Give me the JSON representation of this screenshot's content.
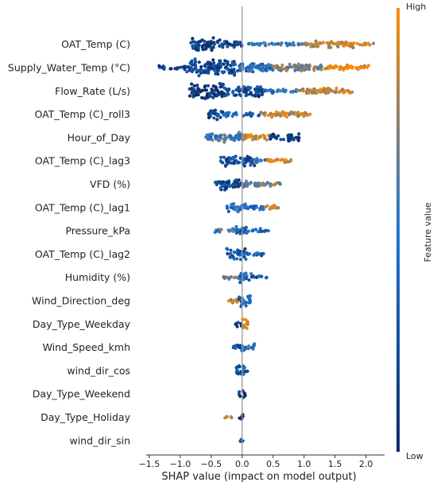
{
  "chart_data": {
    "type": "scatter",
    "subtype": "shap-beeswarm",
    "title": "",
    "xlabel": "SHAP value (impact on model output)",
    "ylabel": "",
    "xlim": [
      -1.55,
      2.3
    ],
    "xticks": [
      -1.5,
      -1.0,
      -0.5,
      0.0,
      0.5,
      1.0,
      1.5,
      2.0
    ],
    "xtick_labels": [
      "−1.5",
      "−1.0",
      "−0.5",
      "0.0",
      "0.5",
      "1.0",
      "1.5",
      "2.0"
    ],
    "grid": false,
    "colorbar": {
      "label": "Feature value",
      "high_label": "High",
      "low_label": "Low",
      "low_color": "#0b2a66",
      "mid_color": "#1f77d4",
      "high_color": "#ff8a00"
    },
    "zero_line_color": "#999999",
    "features": [
      {
        "name": "OAT_Temp (C)",
        "clusters": [
          [
            -0.85,
            -0.35,
            0.9,
            6,
            0.12
          ],
          [
            -0.35,
            0.0,
            0.6,
            3,
            0.2
          ],
          [
            0.1,
            1.0,
            0.3,
            1.5,
            0.55
          ],
          [
            1.0,
            1.8,
            0.55,
            3,
            0.85
          ],
          [
            1.8,
            2.15,
            0.2,
            1,
            0.95
          ]
        ]
      },
      {
        "name": "Supply_Water_Temp (°C)",
        "clusters": [
          [
            -1.35,
            -0.9,
            0.3,
            2,
            0.15
          ],
          [
            -0.9,
            -0.1,
            1.0,
            7,
            0.2
          ],
          [
            -0.1,
            0.5,
            0.8,
            4,
            0.45
          ],
          [
            0.5,
            1.3,
            0.7,
            3,
            0.7
          ],
          [
            1.3,
            2.05,
            0.5,
            2,
            0.95
          ]
        ]
      },
      {
        "name": "Flow_Rate (L/s)",
        "clusters": [
          [
            -0.85,
            -0.3,
            1.0,
            7,
            0.05
          ],
          [
            -0.3,
            0.35,
            0.9,
            5,
            0.2
          ],
          [
            0.35,
            0.9,
            0.4,
            2,
            0.5
          ],
          [
            0.9,
            1.8,
            0.5,
            2.5,
            0.88
          ]
        ]
      },
      {
        "name": "OAT_Temp (C)_roll3",
        "clusters": [
          [
            -0.55,
            -0.3,
            0.7,
            5,
            0.2
          ],
          [
            -0.3,
            0.3,
            0.3,
            2,
            0.35
          ],
          [
            0.3,
            1.1,
            0.45,
            2.5,
            0.85
          ]
        ]
      },
      {
        "name": "Hour_of_Day",
        "clusters": [
          [
            -0.6,
            0.0,
            0.7,
            4.5,
            0.55
          ],
          [
            0.0,
            0.45,
            0.45,
            3,
            0.9
          ],
          [
            0.45,
            0.95,
            0.5,
            3,
            0.1
          ]
        ]
      },
      {
        "name": "OAT_Temp (C)_lag3",
        "clusters": [
          [
            -0.35,
            0.2,
            0.8,
            5,
            0.25
          ],
          [
            0.2,
            0.4,
            0.5,
            2.5,
            0.6
          ],
          [
            0.4,
            0.8,
            0.4,
            2,
            0.9
          ]
        ]
      },
      {
        "name": "VFD (%)",
        "clusters": [
          [
            -0.45,
            0.0,
            0.7,
            5,
            0.2
          ],
          [
            0.0,
            0.3,
            0.6,
            3,
            0.65
          ],
          [
            0.3,
            0.65,
            0.4,
            2,
            0.7
          ]
        ]
      },
      {
        "name": "OAT_Temp (C)_lag1",
        "clusters": [
          [
            -0.25,
            0.1,
            0.6,
            4,
            0.4
          ],
          [
            0.1,
            0.35,
            0.5,
            3,
            0.45
          ],
          [
            0.35,
            0.6,
            0.4,
            2,
            0.9
          ]
        ]
      },
      {
        "name": "Pressure_kPa",
        "clusters": [
          [
            -0.45,
            -0.1,
            0.3,
            2,
            0.6
          ],
          [
            -0.1,
            0.1,
            0.7,
            4,
            0.3
          ],
          [
            0.1,
            0.45,
            0.3,
            2,
            0.4
          ]
        ]
      },
      {
        "name": "OAT_Temp (C)_lag2",
        "clusters": [
          [
            -0.25,
            0.1,
            0.8,
            5,
            0.3
          ],
          [
            0.1,
            0.35,
            0.3,
            2,
            0.4
          ]
        ]
      },
      {
        "name": "Humidity (%)",
        "clusters": [
          [
            -0.3,
            -0.05,
            0.3,
            2,
            0.7
          ],
          [
            -0.05,
            0.15,
            0.8,
            4.5,
            0.4
          ],
          [
            0.15,
            0.4,
            0.3,
            1.5,
            0.3
          ]
        ]
      },
      {
        "name": "Wind_Direction_deg",
        "clusters": [
          [
            -0.25,
            -0.05,
            0.4,
            2,
            0.85
          ],
          [
            -0.05,
            0.15,
            0.9,
            5,
            0.4
          ]
        ]
      },
      {
        "name": "Day_Type_Weekday",
        "clusters": [
          [
            -0.12,
            0.0,
            0.5,
            3,
            0.05
          ],
          [
            0.0,
            0.1,
            0.9,
            5,
            0.9
          ]
        ]
      },
      {
        "name": "Wind_Speed_kmh",
        "clusters": [
          [
            -0.2,
            0.0,
            0.5,
            3,
            0.25
          ],
          [
            0.0,
            0.2,
            0.5,
            3,
            0.5
          ]
        ]
      },
      {
        "name": "wind_dir_cos",
        "clusters": [
          [
            -0.1,
            0.1,
            0.7,
            4,
            0.3
          ]
        ]
      },
      {
        "name": "Day_Type_Weekend",
        "clusters": [
          [
            -0.05,
            0.05,
            0.6,
            3,
            0.1
          ]
        ]
      },
      {
        "name": "Day_Type_Holiday",
        "clusters": [
          [
            -0.3,
            -0.15,
            0.25,
            1,
            0.9
          ],
          [
            -0.05,
            0.03,
            0.6,
            3,
            0.05
          ]
        ]
      },
      {
        "name": "wind_dir_sin",
        "clusters": [
          [
            -0.03,
            0.03,
            0.5,
            3,
            0.3
          ]
        ]
      }
    ]
  }
}
